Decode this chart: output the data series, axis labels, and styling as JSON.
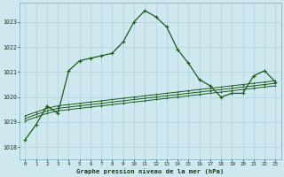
{
  "title": "Graphe pression niveau de la mer (hPa)",
  "bg_color": "#cfe8f0",
  "grid_color": "#b8d8e4",
  "line_color": "#1a5c1a",
  "ylim": [
    1017.5,
    1023.75
  ],
  "yticks": [
    1018,
    1019,
    1020,
    1021,
    1022,
    1023
  ],
  "xlim": [
    -0.5,
    23.5
  ],
  "xticks": [
    0,
    1,
    2,
    3,
    4,
    5,
    6,
    7,
    8,
    9,
    10,
    11,
    12,
    13,
    14,
    15,
    16,
    17,
    18,
    19,
    20,
    21,
    22,
    23
  ],
  "series1": [
    1018.3,
    1018.9,
    1019.65,
    1019.35,
    1021.05,
    1021.45,
    1021.55,
    1021.65,
    1021.75,
    1022.2,
    1023.0,
    1023.45,
    1023.2,
    1022.8,
    1021.9,
    1021.35,
    1020.7,
    1020.45,
    1020.0,
    1020.15,
    1020.15,
    1020.85,
    1021.05,
    1020.6
  ],
  "series2": [
    1019.05,
    1019.2,
    1019.35,
    1019.45,
    1019.5,
    1019.55,
    1019.6,
    1019.65,
    1019.7,
    1019.75,
    1019.8,
    1019.85,
    1019.9,
    1019.95,
    1020.0,
    1020.05,
    1020.1,
    1020.15,
    1020.2,
    1020.25,
    1020.3,
    1020.35,
    1020.4,
    1020.45
  ],
  "series3": [
    1019.15,
    1019.3,
    1019.45,
    1019.55,
    1019.6,
    1019.65,
    1019.7,
    1019.75,
    1019.8,
    1019.85,
    1019.9,
    1019.95,
    1020.0,
    1020.05,
    1020.1,
    1020.15,
    1020.2,
    1020.25,
    1020.3,
    1020.35,
    1020.4,
    1020.45,
    1020.5,
    1020.55
  ],
  "series4": [
    1019.25,
    1019.4,
    1019.55,
    1019.65,
    1019.7,
    1019.75,
    1019.8,
    1019.85,
    1019.9,
    1019.95,
    1020.0,
    1020.05,
    1020.1,
    1020.15,
    1020.2,
    1020.25,
    1020.3,
    1020.35,
    1020.4,
    1020.45,
    1020.5,
    1020.55,
    1020.6,
    1020.65
  ]
}
